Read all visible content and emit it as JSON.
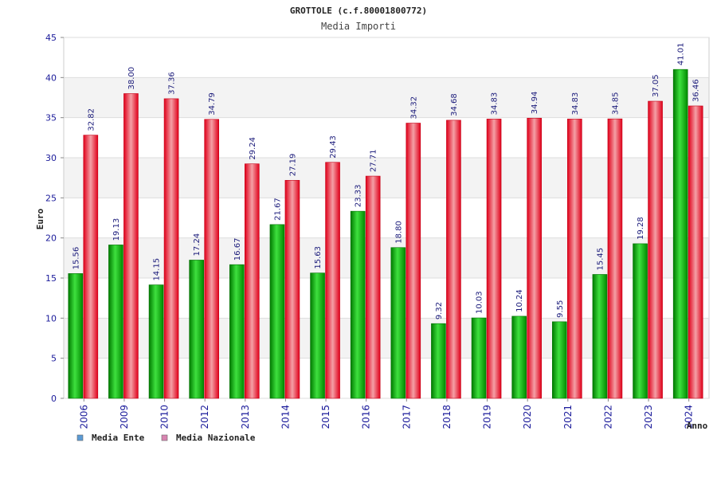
{
  "chart_data": {
    "type": "bar",
    "title": "GROTTOLE (c.f.80001800772)",
    "subtitle": "Media Importi",
    "xlabel": "Anno",
    "ylabel": "Euro",
    "ylim": [
      0,
      45
    ],
    "yticks": [
      0,
      5,
      10,
      15,
      20,
      25,
      30,
      35,
      40,
      45
    ],
    "categories": [
      "2006",
      "2009",
      "2010",
      "2012",
      "2013",
      "2014",
      "2015",
      "2016",
      "2017",
      "2018",
      "2019",
      "2020",
      "2021",
      "2022",
      "2023",
      "2024"
    ],
    "series": [
      {
        "name": "Media Ente",
        "color": "#00b000",
        "legend_color": "#5b9bd5",
        "values": [
          15.56,
          19.13,
          14.15,
          17.24,
          16.67,
          21.67,
          15.63,
          23.33,
          18.8,
          9.32,
          10.03,
          10.24,
          9.55,
          15.45,
          19.28,
          41.01
        ],
        "labels": [
          "15.56",
          "19.13",
          "14.15",
          "17.24",
          "16.67",
          "21.67",
          "15.63",
          "23.33",
          "18.80",
          "9.32",
          "10.03",
          "10.24",
          "9.55",
          "15.45",
          "19.28",
          "41.01"
        ]
      },
      {
        "name": "Media Nazionale",
        "color": "#e8202a",
        "legend_color": "#d884b0",
        "values": [
          32.82,
          38.0,
          37.36,
          34.79,
          29.24,
          27.19,
          29.43,
          27.71,
          34.32,
          34.68,
          34.83,
          34.94,
          34.83,
          34.85,
          37.05,
          36.46
        ],
        "labels": [
          "32.82",
          "38.00",
          "37.36",
          "34.79",
          "29.24",
          "27.19",
          "29.43",
          "27.71",
          "34.32",
          "34.68",
          "34.83",
          "34.94",
          "34.83",
          "34.85",
          "37.05",
          "36.46"
        ]
      }
    ],
    "grid": true,
    "legend_position": "bottom-left"
  }
}
